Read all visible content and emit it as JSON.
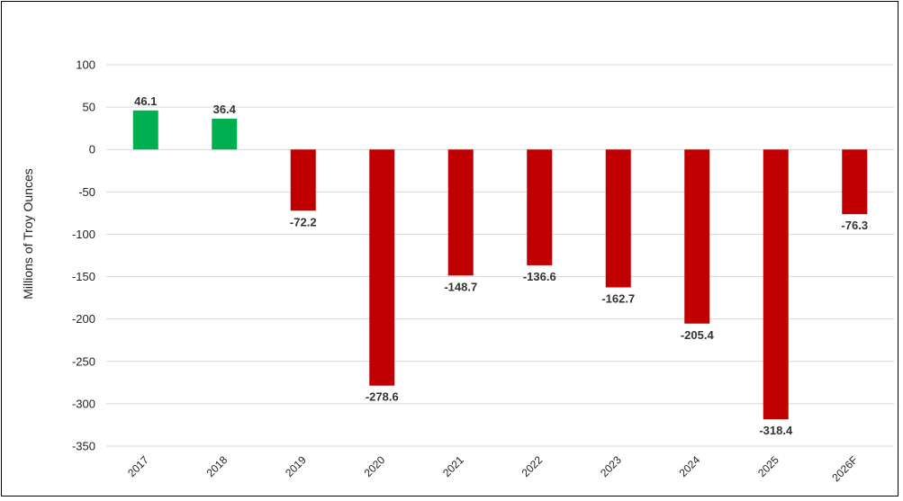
{
  "chart_data": {
    "type": "bar",
    "title": "",
    "xlabel": "",
    "ylabel": "Millions of Troy Ounces",
    "ylim": [
      -350,
      100
    ],
    "yticks": [
      100,
      50,
      0,
      -50,
      -100,
      -150,
      -200,
      -250,
      -300,
      -350
    ],
    "grid": true,
    "categories": [
      "2017",
      "2018",
      "2019",
      "2020",
      "2021",
      "2022",
      "2023",
      "2024",
      "2025",
      "2026F"
    ],
    "values": [
      46.1,
      36.4,
      -72.2,
      -278.6,
      -148.7,
      -136.6,
      -162.7,
      -205.4,
      -318.4,
      -76.3
    ],
    "data_labels": [
      "46.1",
      "36.4",
      "-72.2",
      "-278.6",
      "-148.7",
      "-136.6",
      "-162.7",
      "-205.4",
      "-318.4",
      "-76.3"
    ],
    "colors": {
      "positive": "#00b050",
      "negative": "#c00000",
      "grid": "#d9d9d9"
    }
  }
}
